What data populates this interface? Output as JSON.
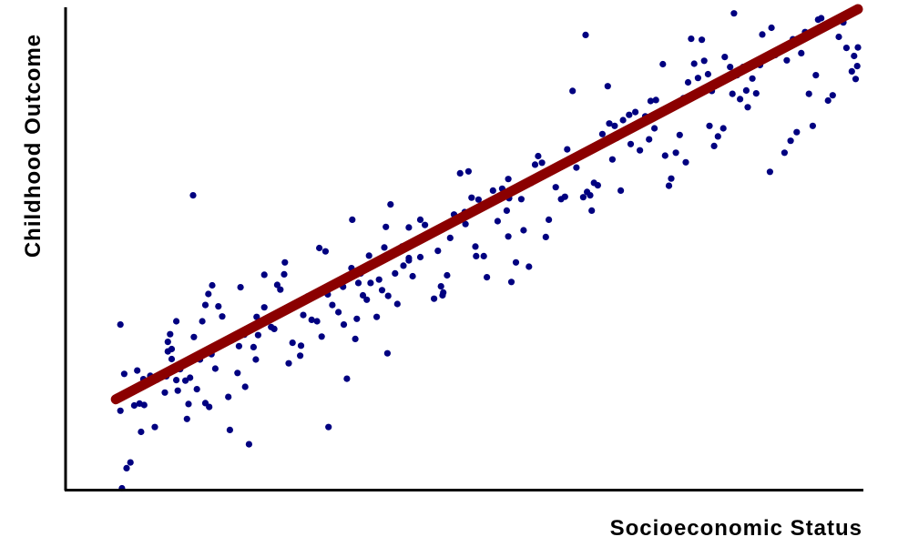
{
  "chart_data": {
    "type": "scatter",
    "title": "",
    "xlabel": "Socioeconomic Status",
    "ylabel": "Childhood Outcome",
    "xlim": [
      0,
      100
    ],
    "ylim": [
      0,
      100
    ],
    "x_ticks_shown": false,
    "y_ticks_shown": false,
    "grid": false,
    "legend": "none",
    "colors": {
      "points": "#000080",
      "trend_line": "#8b0000",
      "axes": "#000000"
    },
    "trend_line": {
      "x": [
        3.0,
        100.0
      ],
      "y": [
        18.5,
        100.0
      ]
    },
    "series": [
      {
        "points": [
          [
            3.6,
            34.1
          ],
          [
            3.6,
            16.1
          ],
          [
            3.8,
            -0.1
          ],
          [
            4.1,
            23.8
          ],
          [
            4.4,
            4.1
          ],
          [
            4.9,
            5.3
          ],
          [
            5.4,
            17.2
          ],
          [
            5.8,
            24.5
          ],
          [
            6.1,
            17.6
          ],
          [
            6.3,
            11.7
          ],
          [
            6.7,
            17.3
          ],
          [
            6.6,
            22.7
          ],
          [
            7.5,
            23.4
          ],
          [
            8.1,
            12.7
          ],
          [
            8.4,
            22.6
          ],
          [
            9.4,
            19.9
          ],
          [
            9.6,
            23.3
          ],
          [
            9.8,
            28.5
          ],
          [
            9.8,
            30.5
          ],
          [
            10.1,
            32.1
          ],
          [
            10.3,
            29.0
          ],
          [
            10.3,
            26.9
          ],
          [
            10.5,
            25.0
          ],
          [
            10.9,
            22.5
          ],
          [
            10.9,
            34.8
          ],
          [
            11.1,
            20.3
          ],
          [
            11.4,
            24.8
          ],
          [
            11.7,
            25.8
          ],
          [
            12.1,
            22.4
          ],
          [
            12.3,
            14.4
          ],
          [
            12.5,
            17.5
          ],
          [
            12.7,
            23.0
          ],
          [
            13.2,
            31.5
          ],
          [
            13.1,
            61.1
          ],
          [
            13.6,
            20.6
          ],
          [
            14.0,
            26.8
          ],
          [
            14.3,
            34.8
          ],
          [
            14.7,
            38.2
          ],
          [
            14.7,
            17.7
          ],
          [
            15.2,
            16.9
          ],
          [
            15.1,
            40.5
          ],
          [
            15.5,
            27.9
          ],
          [
            16.0,
            24.9
          ],
          [
            16.4,
            37.9
          ],
          [
            16.9,
            35.8
          ],
          [
            17.7,
            19.0
          ],
          [
            17.9,
            12.1
          ],
          [
            18.6,
            31.4
          ],
          [
            18.9,
            24.0
          ],
          [
            19.1,
            29.6
          ],
          [
            19.3,
            41.9
          ],
          [
            19.8,
            32.0
          ],
          [
            19.9,
            21.1
          ],
          [
            20.4,
            9.1
          ],
          [
            21.0,
            29.4
          ],
          [
            21.3,
            26.8
          ],
          [
            21.6,
            31.9
          ],
          [
            21.4,
            35.7
          ],
          [
            22.4,
            37.7
          ],
          [
            22.4,
            44.5
          ],
          [
            22.8,
            35.2
          ],
          [
            23.3,
            33.6
          ],
          [
            23.7,
            33.2
          ],
          [
            24.1,
            42.4
          ],
          [
            24.5,
            41.4
          ],
          [
            25.1,
            47.1
          ],
          [
            25.6,
            26.0
          ],
          [
            26.1,
            30.3
          ],
          [
            26.6,
            38.1
          ],
          [
            27.1,
            27.6
          ],
          [
            27.2,
            29.7
          ],
          [
            27.5,
            36.1
          ],
          [
            28.1,
            40.0
          ],
          [
            28.6,
            35.1
          ],
          [
            29.3,
            40.2
          ],
          [
            29.9,
            31.6
          ],
          [
            29.3,
            34.8
          ],
          [
            29.6,
            50.1
          ],
          [
            30.4,
            49.4
          ],
          [
            30.7,
            40.4
          ],
          [
            31.3,
            38.2
          ],
          [
            32.1,
            36.7
          ],
          [
            32.7,
            42.0
          ],
          [
            33.2,
            22.8
          ],
          [
            32.8,
            34.1
          ],
          [
            33.9,
            56.0
          ],
          [
            33.8,
            45.9
          ],
          [
            34.5,
            35.3
          ],
          [
            34.7,
            42.8
          ],
          [
            35.0,
            44.8
          ],
          [
            35.3,
            40.2
          ],
          [
            35.8,
            39.3
          ],
          [
            36.3,
            42.8
          ],
          [
            36.1,
            48.5
          ],
          [
            37.1,
            35.7
          ],
          [
            37.4,
            43.5
          ],
          [
            37.3,
            47.1
          ],
          [
            37.8,
            41.3
          ],
          [
            38.3,
            54.5
          ],
          [
            38.1,
            50.2
          ],
          [
            38.5,
            28.1
          ],
          [
            38.6,
            40.1
          ],
          [
            38.9,
            59.2
          ],
          [
            39.5,
            44.8
          ],
          [
            39.8,
            38.4
          ],
          [
            40.4,
            50.4
          ],
          [
            40.6,
            46.4
          ],
          [
            41.3,
            47.5
          ],
          [
            41.3,
            48.0
          ],
          [
            41.8,
            44.2
          ],
          [
            41.3,
            54.4
          ],
          [
            42.8,
            48.2
          ],
          [
            42.8,
            51.7
          ],
          [
            43.4,
            54.9
          ],
          [
            44.6,
            39.5
          ],
          [
            45.1,
            49.5
          ],
          [
            45.7,
            40.2
          ],
          [
            45.5,
            42.1
          ],
          [
            45.8,
            40.8
          ],
          [
            46.3,
            44.4
          ],
          [
            46.7,
            52.2
          ],
          [
            47.2,
            57.1
          ],
          [
            48.0,
            65.7
          ],
          [
            48.6,
            57.6
          ],
          [
            48.7,
            55.1
          ],
          [
            49.1,
            66.1
          ],
          [
            49.5,
            60.6
          ],
          [
            50.0,
            50.4
          ],
          [
            50.1,
            48.4
          ],
          [
            50.4,
            60.2
          ],
          [
            51.1,
            48.4
          ],
          [
            51.5,
            44.0
          ],
          [
            52.3,
            62.1
          ],
          [
            52.9,
            55.7
          ],
          [
            53.5,
            62.5
          ],
          [
            54.1,
            57.9
          ],
          [
            54.3,
            64.5
          ],
          [
            54.4,
            60.5
          ],
          [
            54.7,
            43.0
          ],
          [
            54.3,
            52.5
          ],
          [
            55.3,
            47.1
          ],
          [
            56.0,
            60.3
          ],
          [
            56.3,
            53.8
          ],
          [
            57.0,
            46.2
          ],
          [
            57.3,
            63.7
          ],
          [
            57.8,
            67.5
          ],
          [
            58.2,
            69.3
          ],
          [
            58.7,
            67.9
          ],
          [
            59.2,
            52.4
          ],
          [
            59.6,
            56.0
          ],
          [
            60.5,
            62.8
          ],
          [
            61.2,
            60.3
          ],
          [
            61.7,
            60.8
          ],
          [
            62.0,
            70.7
          ],
          [
            62.3,
            68.7
          ],
          [
            62.7,
            82.9
          ],
          [
            63.2,
            66.9
          ],
          [
            63.7,
            69.6
          ],
          [
            64.1,
            60.7
          ],
          [
            64.6,
            61.8
          ],
          [
            65.0,
            61.1
          ],
          [
            65.2,
            57.9
          ],
          [
            65.5,
            63.7
          ],
          [
            66.0,
            63.2
          ],
          [
            66.6,
            73.9
          ],
          [
            67.3,
            83.9
          ],
          [
            67.5,
            76.1
          ],
          [
            67.9,
            68.6
          ],
          [
            68.5,
            73.1
          ],
          [
            68.2,
            75.6
          ],
          [
            69.0,
            62.1
          ],
          [
            69.3,
            76.8
          ],
          [
            70.1,
            77.9
          ],
          [
            70.3,
            71.8
          ],
          [
            70.9,
            78.5
          ],
          [
            71.5,
            70.5
          ],
          [
            72.2,
            77.6
          ],
          [
            72.7,
            72.8
          ],
          [
            72.9,
            80.8
          ],
          [
            73.4,
            75.1
          ],
          [
            73.6,
            81.0
          ],
          [
            74.3,
            78.8
          ],
          [
            74.5,
            88.5
          ],
          [
            74.8,
            69.4
          ],
          [
            75.3,
            63.1
          ],
          [
            75.6,
            64.6
          ],
          [
            76.2,
            70.0
          ],
          [
            76.7,
            73.7
          ],
          [
            77.2,
            81.4
          ],
          [
            77.8,
            84.7
          ],
          [
            77.5,
            68.0
          ],
          [
            78.2,
            93.8
          ],
          [
            78.6,
            88.6
          ],
          [
            79.1,
            85.6
          ],
          [
            79.6,
            93.6
          ],
          [
            79.9,
            89.2
          ],
          [
            80.4,
            86.4
          ],
          [
            80.9,
            82.9
          ],
          [
            80.6,
            75.6
          ],
          [
            81.2,
            71.4
          ],
          [
            81.7,
            73.4
          ],
          [
            82.2,
            85.1
          ],
          [
            82.6,
            90.0
          ],
          [
            82.4,
            75.1
          ],
          [
            83.3,
            87.9
          ],
          [
            83.8,
            99.1
          ],
          [
            83.6,
            82.3
          ],
          [
            84.2,
            86.2
          ],
          [
            84.6,
            81.2
          ],
          [
            85.0,
            87.9
          ],
          [
            85.4,
            83.0
          ],
          [
            85.6,
            79.5
          ],
          [
            86.2,
            85.5
          ],
          [
            86.7,
            82.4
          ],
          [
            87.2,
            88.3
          ],
          [
            87.5,
            94.7
          ],
          [
            88.5,
            66.0
          ],
          [
            88.7,
            96.1
          ],
          [
            89.2,
            90.4
          ],
          [
            90.4,
            70.0
          ],
          [
            90.7,
            89.3
          ],
          [
            91.2,
            72.5
          ],
          [
            91.5,
            93.7
          ],
          [
            92.0,
            74.3
          ],
          [
            92.6,
            90.8
          ],
          [
            93.1,
            95.2
          ],
          [
            93.6,
            82.3
          ],
          [
            94.1,
            75.6
          ],
          [
            94.5,
            86.2
          ],
          [
            94.8,
            97.8
          ],
          [
            95.2,
            98.1
          ],
          [
            95.7,
            96.3
          ],
          [
            96.1,
            80.9
          ],
          [
            96.7,
            82.0
          ],
          [
            97.5,
            94.2
          ],
          [
            98.1,
            97.2
          ],
          [
            98.5,
            91.9
          ],
          [
            99.2,
            87.0
          ],
          [
            99.6,
            99.6
          ],
          [
            99.3,
            99.4
          ],
          [
            99.5,
            90.2
          ],
          [
            99.9,
            88.1
          ],
          [
            100.0,
            92.0
          ],
          [
            99.7,
            85.4
          ],
          [
            30.8,
            12.7
          ],
          [
            34.3,
            31.1
          ],
          [
            15.6,
            42.3
          ],
          [
            25.0,
            44.6
          ],
          [
            42.8,
            56.0
          ],
          [
            64.4,
            94.6
          ]
        ]
      }
    ]
  }
}
